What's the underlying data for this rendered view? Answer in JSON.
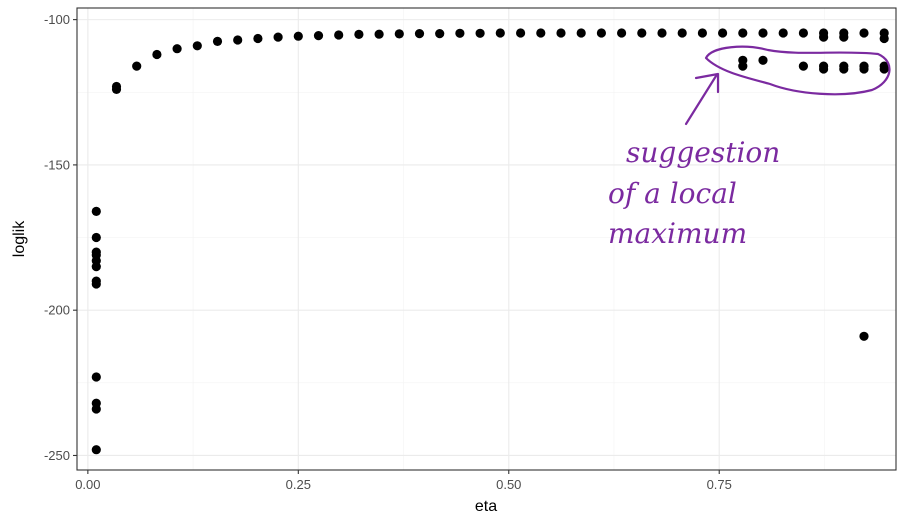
{
  "chart_data": {
    "type": "scatter",
    "title": "",
    "xlabel": "eta",
    "ylabel": "loglik",
    "xlim": [
      -0.0129,
      0.96
    ],
    "ylim": [
      -255,
      -96
    ],
    "x_ticks": [
      0.0,
      0.25,
      0.5,
      0.75
    ],
    "x_tick_labels": [
      "0.00",
      "0.25",
      "0.50",
      "0.75"
    ],
    "y_ticks": [
      -100,
      -150,
      -200,
      -250
    ],
    "y_tick_labels": [
      "-100",
      "-150",
      "-200",
      "-250"
    ],
    "grid": true,
    "legend": "none",
    "colors": {
      "points": "#000000",
      "annotation": "#7b2aa0",
      "grid": "#ebebeb",
      "panel_border": "#333333"
    },
    "points": [
      {
        "x": 0.01,
        "y": -166
      },
      {
        "x": 0.01,
        "y": -175
      },
      {
        "x": 0.01,
        "y": -180
      },
      {
        "x": 0.01,
        "y": -181
      },
      {
        "x": 0.01,
        "y": -183
      },
      {
        "x": 0.01,
        "y": -185
      },
      {
        "x": 0.01,
        "y": -190
      },
      {
        "x": 0.01,
        "y": -191
      },
      {
        "x": 0.01,
        "y": -223
      },
      {
        "x": 0.01,
        "y": -232
      },
      {
        "x": 0.01,
        "y": -234
      },
      {
        "x": 0.01,
        "y": -248
      },
      {
        "x": 0.034,
        "y": -123
      },
      {
        "x": 0.034,
        "y": -124
      },
      {
        "x": 0.058,
        "y": -116
      },
      {
        "x": 0.082,
        "y": -112
      },
      {
        "x": 0.106,
        "y": -110
      },
      {
        "x": 0.13,
        "y": -109
      },
      {
        "x": 0.154,
        "y": -107.5
      },
      {
        "x": 0.178,
        "y": -107
      },
      {
        "x": 0.202,
        "y": -106.5
      },
      {
        "x": 0.226,
        "y": -106
      },
      {
        "x": 0.25,
        "y": -105.7
      },
      {
        "x": 0.274,
        "y": -105.5
      },
      {
        "x": 0.298,
        "y": -105.3
      },
      {
        "x": 0.322,
        "y": -105.1
      },
      {
        "x": 0.346,
        "y": -105
      },
      {
        "x": 0.37,
        "y": -104.9
      },
      {
        "x": 0.394,
        "y": -104.8
      },
      {
        "x": 0.418,
        "y": -104.8
      },
      {
        "x": 0.442,
        "y": -104.7
      },
      {
        "x": 0.466,
        "y": -104.7
      },
      {
        "x": 0.49,
        "y": -104.6
      },
      {
        "x": 0.514,
        "y": -104.6
      },
      {
        "x": 0.538,
        "y": -104.6
      },
      {
        "x": 0.562,
        "y": -104.6
      },
      {
        "x": 0.586,
        "y": -104.6
      },
      {
        "x": 0.61,
        "y": -104.6
      },
      {
        "x": 0.634,
        "y": -104.6
      },
      {
        "x": 0.658,
        "y": -104.6
      },
      {
        "x": 0.682,
        "y": -104.6
      },
      {
        "x": 0.706,
        "y": -104.6
      },
      {
        "x": 0.73,
        "y": -104.6
      },
      {
        "x": 0.754,
        "y": -104.6
      },
      {
        "x": 0.778,
        "y": -104.6
      },
      {
        "x": 0.802,
        "y": -104.6
      },
      {
        "x": 0.826,
        "y": -104.6
      },
      {
        "x": 0.85,
        "y": -104.6
      },
      {
        "x": 0.874,
        "y": -104.6
      },
      {
        "x": 0.898,
        "y": -104.6
      },
      {
        "x": 0.922,
        "y": -104.6
      },
      {
        "x": 0.946,
        "y": -104.6
      },
      {
        "x": 0.874,
        "y": -106
      },
      {
        "x": 0.898,
        "y": -106
      },
      {
        "x": 0.946,
        "y": -106.5
      },
      {
        "x": 0.778,
        "y": -114
      },
      {
        "x": 0.778,
        "y": -116
      },
      {
        "x": 0.802,
        "y": -114
      },
      {
        "x": 0.85,
        "y": -116
      },
      {
        "x": 0.874,
        "y": -116
      },
      {
        "x": 0.874,
        "y": -117
      },
      {
        "x": 0.898,
        "y": -116
      },
      {
        "x": 0.898,
        "y": -117
      },
      {
        "x": 0.922,
        "y": -116
      },
      {
        "x": 0.922,
        "y": -117
      },
      {
        "x": 0.946,
        "y": -116
      },
      {
        "x": 0.946,
        "y": -117
      },
      {
        "x": 0.922,
        "y": -209
      }
    ],
    "annotations": [
      {
        "text_lines": [
          "suggestion",
          "of a local",
          "maximum"
        ],
        "points_to": "cluster near eta 0.78–0.95, loglik about -116",
        "style": "handwritten"
      }
    ]
  }
}
